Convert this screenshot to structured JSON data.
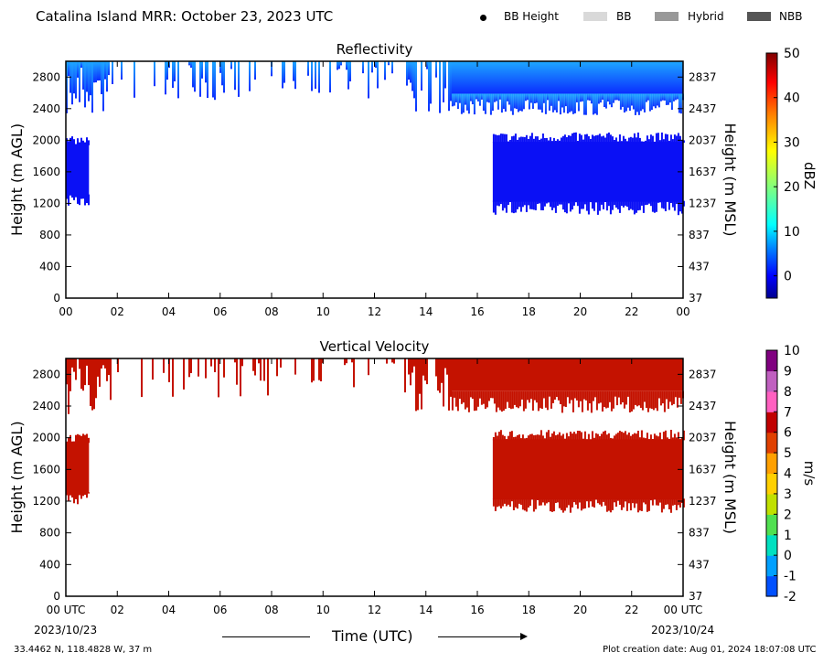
{
  "header": {
    "title": "Catalina Island MRR:  October 23, 2023 UTC",
    "legend": [
      {
        "label": "BB Height",
        "marker": "dot",
        "color": "#000000"
      },
      {
        "label": "BB",
        "marker": "swatch",
        "color": "#d9d9d9"
      },
      {
        "label": "Hybrid",
        "marker": "swatch",
        "color": "#999999"
      },
      {
        "label": "NBB",
        "marker": "swatch",
        "color": "#555555"
      }
    ]
  },
  "footer": {
    "location": "33.4462 N, 118.4828 W, 37 m",
    "created": "Plot creation date: Aug 01, 2024 18:07:08 UTC",
    "xlabel": "Time (UTC)",
    "start_tick": "00 UTC",
    "end_tick": "00 UTC",
    "start_date": "2023/10/23",
    "end_date": "2023/10/24"
  },
  "chart_data": [
    {
      "type": "heatmap",
      "title": "Reflectivity",
      "ylabel": "Height (m AGL)",
      "ylabel_right": "Height (m MSL)",
      "colorbar_label": "dBZ",
      "x_ticks": [
        "00",
        "02",
        "04",
        "06",
        "08",
        "10",
        "12",
        "14",
        "16",
        "18",
        "20",
        "22",
        "00"
      ],
      "xlim_hours": [
        0,
        24
      ],
      "y_ticks": [
        0,
        400,
        800,
        1200,
        1600,
        2000,
        2400,
        2800
      ],
      "y_ticks_right": [
        37,
        437,
        837,
        1237,
        1637,
        2037,
        2437,
        2837
      ],
      "ylim": [
        0,
        3000
      ],
      "colorbar": {
        "ticks": [
          0,
          10,
          20,
          30,
          40,
          50
        ],
        "range": [
          -5,
          50
        ],
        "colors": [
          "#00008f",
          "#0000ff",
          "#007fff",
          "#00ffff",
          "#7fff7f",
          "#ffff00",
          "#ff7f00",
          "#ff0000",
          "#7f0000"
        ]
      },
      "regions": [
        {
          "name": "upper-layer",
          "x_hours": [
            0,
            24
          ],
          "y_m": [
            2450,
            3000
          ],
          "dbz": 2,
          "coverage": "intermittent before 15 UTC, continuous after"
        },
        {
          "name": "early-cloud",
          "x_hours": [
            0,
            0.9
          ],
          "y_m": [
            1200,
            2050
          ],
          "dbz": -1
        },
        {
          "name": "late-cloud",
          "x_hours": [
            16.6,
            24
          ],
          "y_m": [
            1100,
            2100
          ],
          "dbz": -1
        }
      ]
    },
    {
      "type": "heatmap",
      "title": "Vertical Velocity",
      "ylabel": "Height (m AGL)",
      "ylabel_right": "Height (m MSL)",
      "colorbar_label": "m/s",
      "x_ticks": [
        "00 UTC",
        "02",
        "04",
        "06",
        "08",
        "10",
        "12",
        "14",
        "16",
        "18",
        "20",
        "22",
        "00 UTC"
      ],
      "xlim_hours": [
        0,
        24
      ],
      "y_ticks": [
        0,
        400,
        800,
        1200,
        1600,
        2000,
        2400,
        2800
      ],
      "y_ticks_right": [
        37,
        437,
        837,
        1237,
        1637,
        2037,
        2437,
        2837
      ],
      "ylim": [
        0,
        3000
      ],
      "colorbar": {
        "ticks": [
          -2,
          -1,
          0,
          1,
          2,
          3,
          4,
          5,
          6,
          7,
          8,
          9,
          10
        ],
        "range": [
          -2,
          10
        ],
        "colors": [
          "#0050ff",
          "#00a0ff",
          "#00e0c0",
          "#50e050",
          "#c0e000",
          "#ffd000",
          "#ffa000",
          "#e04000",
          "#c00000",
          "#ff60c0",
          "#c060c0",
          "#800080"
        ]
      },
      "regions": [
        {
          "name": "upper-layer",
          "x_hours": [
            0,
            24
          ],
          "y_m": [
            2450,
            3000
          ],
          "velocity": 6
        },
        {
          "name": "early-cloud",
          "x_hours": [
            0,
            0.9
          ],
          "y_m": [
            1200,
            2050
          ],
          "velocity": 6
        },
        {
          "name": "late-cloud",
          "x_hours": [
            16.6,
            24
          ],
          "y_m": [
            1100,
            2100
          ],
          "velocity": 6
        }
      ]
    }
  ]
}
